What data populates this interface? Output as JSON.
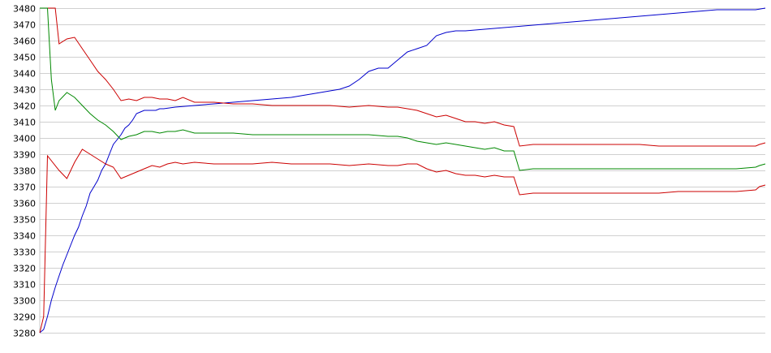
{
  "chart_data": {
    "type": "line",
    "title": "",
    "xlabel": "",
    "ylabel": "",
    "ylim": [
      3280,
      3480
    ],
    "yticks": [
      3280,
      3290,
      3300,
      3310,
      3320,
      3330,
      3340,
      3350,
      3360,
      3370,
      3380,
      3390,
      3400,
      3410,
      3420,
      3430,
      3440,
      3450,
      3460,
      3470,
      3480
    ],
    "grid": true,
    "legend": "none",
    "series": [
      {
        "color": "#0000cc",
        "points": [
          [
            0,
            3280
          ],
          [
            0.02,
            3282
          ],
          [
            0.04,
            3290
          ],
          [
            0.06,
            3300
          ],
          [
            0.08,
            3308
          ],
          [
            0.1,
            3315
          ],
          [
            0.12,
            3322
          ],
          [
            0.14,
            3328
          ],
          [
            0.16,
            3334
          ],
          [
            0.18,
            3340
          ],
          [
            0.2,
            3345
          ],
          [
            0.22,
            3352
          ],
          [
            0.24,
            3358
          ],
          [
            0.26,
            3366
          ],
          [
            0.28,
            3370
          ],
          [
            0.3,
            3374
          ],
          [
            0.32,
            3380
          ],
          [
            0.34,
            3384
          ],
          [
            0.36,
            3390
          ],
          [
            0.38,
            3396
          ],
          [
            0.4,
            3399
          ],
          [
            0.42,
            3402
          ],
          [
            0.44,
            3406
          ],
          [
            0.46,
            3408
          ],
          [
            0.48,
            3411
          ],
          [
            0.5,
            3415
          ],
          [
            0.52,
            3416
          ],
          [
            0.54,
            3417
          ],
          [
            0.56,
            3417
          ],
          [
            0.6,
            3417
          ],
          [
            0.62,
            3418
          ],
          [
            0.64,
            3418
          ],
          [
            0.7,
            3419
          ],
          [
            0.8,
            3420
          ],
          [
            0.9,
            3421
          ],
          [
            1.0,
            3422
          ],
          [
            1.1,
            3423
          ],
          [
            1.2,
            3424
          ],
          [
            1.3,
            3425
          ],
          [
            1.35,
            3426
          ],
          [
            1.4,
            3427
          ],
          [
            1.45,
            3428
          ],
          [
            1.5,
            3429
          ],
          [
            1.55,
            3430
          ],
          [
            1.6,
            3432
          ],
          [
            1.65,
            3436
          ],
          [
            1.7,
            3441
          ],
          [
            1.75,
            3443
          ],
          [
            1.8,
            3443
          ],
          [
            1.85,
            3448
          ],
          [
            1.9,
            3453
          ],
          [
            1.95,
            3455
          ],
          [
            2.0,
            3457
          ],
          [
            2.05,
            3463
          ],
          [
            2.1,
            3465
          ],
          [
            2.15,
            3466
          ],
          [
            2.2,
            3466
          ],
          [
            2.3,
            3467
          ],
          [
            2.4,
            3468
          ],
          [
            2.5,
            3469
          ],
          [
            2.6,
            3470
          ],
          [
            2.7,
            3471
          ],
          [
            2.8,
            3472
          ],
          [
            2.9,
            3473
          ],
          [
            3.0,
            3474
          ],
          [
            3.1,
            3475
          ],
          [
            3.2,
            3476
          ],
          [
            3.3,
            3477
          ],
          [
            3.4,
            3478
          ],
          [
            3.5,
            3479
          ],
          [
            3.6,
            3479
          ],
          [
            3.7,
            3479
          ],
          [
            3.75,
            3480
          ]
        ]
      },
      {
        "color": "#cc0000",
        "points": [
          [
            0,
            3280
          ],
          [
            0.02,
            3290
          ],
          [
            0.04,
            3389
          ],
          [
            0.1,
            3380
          ],
          [
            0.14,
            3375
          ],
          [
            0.18,
            3385
          ],
          [
            0.22,
            3393
          ],
          [
            0.26,
            3390
          ],
          [
            0.3,
            3387
          ],
          [
            0.34,
            3384
          ],
          [
            0.38,
            3382
          ],
          [
            0.42,
            3375
          ],
          [
            0.46,
            3377
          ],
          [
            0.5,
            3379
          ],
          [
            0.54,
            3381
          ],
          [
            0.58,
            3383
          ],
          [
            0.62,
            3382
          ],
          [
            0.66,
            3384
          ],
          [
            0.7,
            3385
          ],
          [
            0.74,
            3384
          ],
          [
            0.8,
            3385
          ],
          [
            0.9,
            3384
          ],
          [
            1.0,
            3384
          ],
          [
            1.1,
            3384
          ],
          [
            1.2,
            3385
          ],
          [
            1.3,
            3384
          ],
          [
            1.4,
            3384
          ],
          [
            1.5,
            3384
          ],
          [
            1.6,
            3383
          ],
          [
            1.7,
            3384
          ],
          [
            1.8,
            3383
          ],
          [
            1.85,
            3383
          ],
          [
            1.9,
            3384
          ],
          [
            1.95,
            3384
          ],
          [
            2.0,
            3381
          ],
          [
            2.05,
            3379
          ],
          [
            2.1,
            3380
          ],
          [
            2.15,
            3378
          ],
          [
            2.2,
            3377
          ],
          [
            2.25,
            3377
          ],
          [
            2.3,
            3376
          ],
          [
            2.35,
            3377
          ],
          [
            2.4,
            3376
          ],
          [
            2.45,
            3376
          ],
          [
            2.48,
            3365
          ],
          [
            2.55,
            3366
          ],
          [
            2.6,
            3366
          ],
          [
            2.7,
            3366
          ],
          [
            2.8,
            3366
          ],
          [
            2.9,
            3366
          ],
          [
            3.0,
            3366
          ],
          [
            3.1,
            3366
          ],
          [
            3.2,
            3366
          ],
          [
            3.3,
            3367
          ],
          [
            3.4,
            3367
          ],
          [
            3.5,
            3367
          ],
          [
            3.6,
            3367
          ],
          [
            3.7,
            3368
          ],
          [
            3.72,
            3370
          ],
          [
            3.75,
            3371
          ]
        ]
      },
      {
        "color": "#cc0000",
        "points": [
          [
            0,
            3480
          ],
          [
            0.04,
            3480
          ],
          [
            0.06,
            3480
          ],
          [
            0.08,
            3480
          ],
          [
            0.1,
            3458
          ],
          [
            0.14,
            3461
          ],
          [
            0.18,
            3462
          ],
          [
            0.22,
            3455
          ],
          [
            0.26,
            3448
          ],
          [
            0.3,
            3441
          ],
          [
            0.34,
            3436
          ],
          [
            0.38,
            3430
          ],
          [
            0.42,
            3423
          ],
          [
            0.46,
            3424
          ],
          [
            0.5,
            3423
          ],
          [
            0.54,
            3425
          ],
          [
            0.58,
            3425
          ],
          [
            0.62,
            3424
          ],
          [
            0.66,
            3424
          ],
          [
            0.7,
            3423
          ],
          [
            0.74,
            3425
          ],
          [
            0.8,
            3422
          ],
          [
            0.9,
            3422
          ],
          [
            1.0,
            3421
          ],
          [
            1.1,
            3421
          ],
          [
            1.2,
            3420
          ],
          [
            1.3,
            3420
          ],
          [
            1.4,
            3420
          ],
          [
            1.5,
            3420
          ],
          [
            1.6,
            3419
          ],
          [
            1.7,
            3420
          ],
          [
            1.8,
            3419
          ],
          [
            1.85,
            3419
          ],
          [
            1.9,
            3418
          ],
          [
            1.95,
            3417
          ],
          [
            2.0,
            3415
          ],
          [
            2.05,
            3413
          ],
          [
            2.1,
            3414
          ],
          [
            2.15,
            3412
          ],
          [
            2.2,
            3410
          ],
          [
            2.25,
            3410
          ],
          [
            2.3,
            3409
          ],
          [
            2.35,
            3410
          ],
          [
            2.4,
            3408
          ],
          [
            2.45,
            3407
          ],
          [
            2.48,
            3395
          ],
          [
            2.55,
            3396
          ],
          [
            2.6,
            3396
          ],
          [
            2.7,
            3396
          ],
          [
            2.8,
            3396
          ],
          [
            2.9,
            3396
          ],
          [
            3.0,
            3396
          ],
          [
            3.1,
            3396
          ],
          [
            3.2,
            3395
          ],
          [
            3.3,
            3395
          ],
          [
            3.4,
            3395
          ],
          [
            3.5,
            3395
          ],
          [
            3.6,
            3395
          ],
          [
            3.7,
            3395
          ],
          [
            3.72,
            3396
          ],
          [
            3.75,
            3397
          ]
        ]
      },
      {
        "color": "#008800",
        "points": [
          [
            0,
            3480
          ],
          [
            0.04,
            3480
          ],
          [
            0.06,
            3436
          ],
          [
            0.08,
            3417
          ],
          [
            0.1,
            3423
          ],
          [
            0.14,
            3428
          ],
          [
            0.18,
            3425
          ],
          [
            0.22,
            3420
          ],
          [
            0.26,
            3415
          ],
          [
            0.3,
            3411
          ],
          [
            0.34,
            3408
          ],
          [
            0.38,
            3404
          ],
          [
            0.42,
            3399
          ],
          [
            0.46,
            3401
          ],
          [
            0.5,
            3402
          ],
          [
            0.54,
            3404
          ],
          [
            0.58,
            3404
          ],
          [
            0.62,
            3403
          ],
          [
            0.66,
            3404
          ],
          [
            0.7,
            3404
          ],
          [
            0.74,
            3405
          ],
          [
            0.8,
            3403
          ],
          [
            0.9,
            3403
          ],
          [
            1.0,
            3403
          ],
          [
            1.1,
            3402
          ],
          [
            1.2,
            3402
          ],
          [
            1.3,
            3402
          ],
          [
            1.4,
            3402
          ],
          [
            1.5,
            3402
          ],
          [
            1.6,
            3402
          ],
          [
            1.7,
            3402
          ],
          [
            1.8,
            3401
          ],
          [
            1.85,
            3401
          ],
          [
            1.9,
            3400
          ],
          [
            1.95,
            3398
          ],
          [
            2.0,
            3397
          ],
          [
            2.05,
            3396
          ],
          [
            2.1,
            3397
          ],
          [
            2.15,
            3396
          ],
          [
            2.2,
            3395
          ],
          [
            2.25,
            3394
          ],
          [
            2.3,
            3393
          ],
          [
            2.35,
            3394
          ],
          [
            2.4,
            3392
          ],
          [
            2.45,
            3392
          ],
          [
            2.48,
            3380
          ],
          [
            2.55,
            3381
          ],
          [
            2.6,
            3381
          ],
          [
            2.7,
            3381
          ],
          [
            2.8,
            3381
          ],
          [
            2.9,
            3381
          ],
          [
            3.0,
            3381
          ],
          [
            3.1,
            3381
          ],
          [
            3.2,
            3381
          ],
          [
            3.3,
            3381
          ],
          [
            3.4,
            3381
          ],
          [
            3.5,
            3381
          ],
          [
            3.6,
            3381
          ],
          [
            3.7,
            3382
          ],
          [
            3.72,
            3383
          ],
          [
            3.75,
            3384
          ]
        ]
      }
    ]
  }
}
